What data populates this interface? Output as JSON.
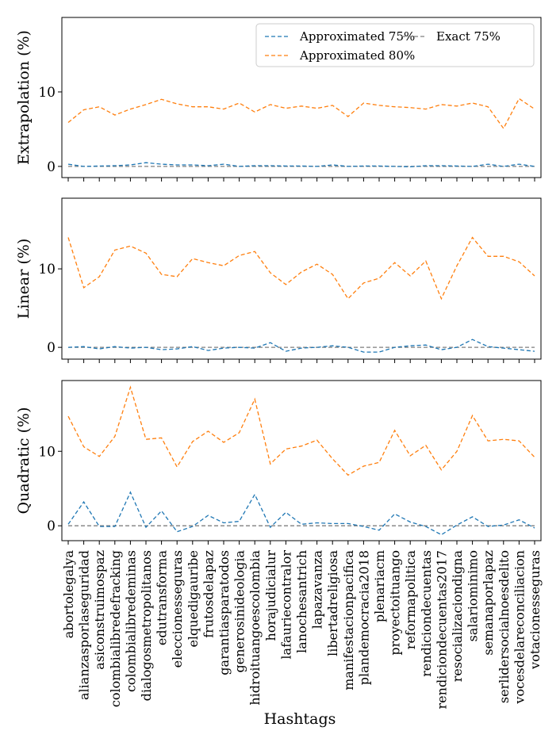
{
  "chart_data": {
    "type": "line",
    "xlabel": "Hashtags",
    "x": [
      "abortolegalya",
      "alianzasporlaseguridad",
      "asiconstruimospaz",
      "colombialibredefracking",
      "colombialibredeminas",
      "dialogosmetropolitanos",
      "edutransforma",
      "eleccionesseguras",
      "elquedigauribe",
      "frutosdelapaz",
      "garantiasparatodos",
      "generosinideologia",
      "hidroituangoescolombia",
      "horajudicialur",
      "lafauriecontralor",
      "lanochesantrich",
      "lapazavanza",
      "libertadreligiosa",
      "manifestacionpacifica",
      "plandemocracia2018",
      "plenariacm",
      "proyectoituango",
      "reformapolitica",
      "rendiciondecuentas",
      "rendiciondecuentas2017",
      "resocializaciondigna",
      "salariominimo",
      "semanaporlapaz",
      "serlidersocialnoesdelito",
      "vocesdelareconciliacion",
      "votacionesseguras"
    ],
    "legend": {
      "placement": "top-right",
      "entries": [
        {
          "label": "Approximated 75%",
          "color": "#1f77b4",
          "style": "dashed"
        },
        {
          "label": "Exact 75%",
          "color": "#7f7f7f",
          "style": "dashed"
        },
        {
          "label": "Approximated 80%",
          "color": "#ff7f0e",
          "style": "dashed"
        }
      ]
    },
    "panels": [
      {
        "ylabel": "Extrapolation (%)",
        "ylim": [
          -1.5,
          20
        ],
        "yticks": [
          0,
          10
        ],
        "series": [
          {
            "name": "Approximated 75%",
            "color": "#1f77b4",
            "values": [
              0.3,
              0.0,
              0.05,
              0.1,
              0.2,
              0.5,
              0.3,
              0.2,
              0.2,
              0.1,
              0.3,
              0.0,
              0.1,
              0.1,
              0.05,
              0.05,
              0.0,
              0.2,
              0.0,
              0.05,
              0.05,
              0.0,
              -0.05,
              0.1,
              0.1,
              0.05,
              0.0,
              0.3,
              0.0,
              0.3,
              0.0
            ]
          },
          {
            "name": "Exact 75%",
            "color": "#7f7f7f",
            "values": [
              0,
              0,
              0,
              0,
              0,
              0,
              0,
              0,
              0,
              0,
              0,
              0,
              0,
              0,
              0,
              0,
              0,
              0,
              0,
              0,
              0,
              0,
              0,
              0,
              0,
              0,
              0,
              0,
              0,
              0,
              0
            ]
          },
          {
            "name": "Approximated 80%",
            "color": "#ff7f0e",
            "values": [
              5.9,
              7.6,
              8.0,
              6.9,
              7.7,
              8.3,
              9.0,
              8.4,
              8.0,
              8.0,
              7.7,
              8.5,
              7.3,
              8.3,
              7.8,
              8.1,
              7.8,
              8.2,
              6.7,
              8.5,
              8.2,
              8.0,
              7.9,
              7.7,
              8.3,
              8.1,
              8.5,
              8.0,
              5.1,
              9.1,
              7.7
            ]
          }
        ]
      },
      {
        "ylabel": "Linear (%)",
        "ylim": [
          -1.5,
          19
        ],
        "yticks": [
          0,
          10
        ],
        "series": [
          {
            "name": "Approximated 75%",
            "color": "#1f77b4",
            "values": [
              0.0,
              0.1,
              -0.2,
              0.1,
              -0.1,
              0.0,
              -0.3,
              -0.2,
              0.1,
              -0.4,
              -0.1,
              0.0,
              -0.1,
              0.6,
              -0.5,
              -0.1,
              0.0,
              0.2,
              0.0,
              -0.6,
              -0.6,
              0.0,
              0.2,
              0.3,
              -0.3,
              0.0,
              1.0,
              0.1,
              -0.1,
              -0.3,
              -0.5
            ]
          },
          {
            "name": "Exact 75%",
            "color": "#7f7f7f",
            "values": [
              0,
              0,
              0,
              0,
              0,
              0,
              0,
              0,
              0,
              0,
              0,
              0,
              0,
              0,
              0,
              0,
              0,
              0,
              0,
              0,
              0,
              0,
              0,
              0,
              0,
              0,
              0,
              0,
              0,
              0,
              0
            ]
          },
          {
            "name": "Approximated 80%",
            "color": "#ff7f0e",
            "values": [
              14.0,
              7.6,
              9.0,
              12.4,
              12.9,
              12.0,
              9.3,
              9.0,
              11.3,
              10.8,
              10.4,
              11.7,
              12.2,
              9.5,
              8.0,
              9.6,
              10.6,
              9.3,
              6.2,
              8.2,
              8.8,
              10.8,
              9.1,
              11.0,
              6.2,
              10.4,
              14.0,
              11.6,
              11.6,
              10.9,
              9.1
            ]
          }
        ]
      },
      {
        "ylabel": "Quadratic (%)",
        "ylim": [
          -2.0,
          19.5
        ],
        "yticks": [
          0,
          10
        ],
        "series": [
          {
            "name": "Approximated 75%",
            "color": "#1f77b4",
            "values": [
              0.2,
              3.2,
              -0.1,
              -0.1,
              4.5,
              -0.2,
              2.0,
              -0.8,
              -0.1,
              1.4,
              0.4,
              0.6,
              4.2,
              -0.2,
              1.8,
              0.2,
              0.4,
              0.3,
              0.3,
              -0.1,
              -0.6,
              1.6,
              0.5,
              -0.1,
              -1.2,
              0.1,
              1.2,
              -0.1,
              0.1,
              0.8,
              -0.3
            ]
          },
          {
            "name": "Exact 75%",
            "color": "#7f7f7f",
            "values": [
              0,
              0,
              0,
              0,
              0,
              0,
              0,
              0,
              0,
              0,
              0,
              0,
              0,
              0,
              0,
              0,
              0,
              0,
              0,
              0,
              0,
              0,
              0,
              0,
              0,
              0,
              0,
              0,
              0,
              0,
              0
            ]
          },
          {
            "name": "Approximated 80%",
            "color": "#ff7f0e",
            "values": [
              14.7,
              10.6,
              9.3,
              12.0,
              18.6,
              11.6,
              11.8,
              7.9,
              11.3,
              12.7,
              11.2,
              12.5,
              17.0,
              8.3,
              10.3,
              10.7,
              11.5,
              9.0,
              6.8,
              8.0,
              8.5,
              12.8,
              9.4,
              10.8,
              7.5,
              10.0,
              14.8,
              11.4,
              11.6,
              11.4,
              9.2
            ]
          }
        ]
      }
    ]
  }
}
